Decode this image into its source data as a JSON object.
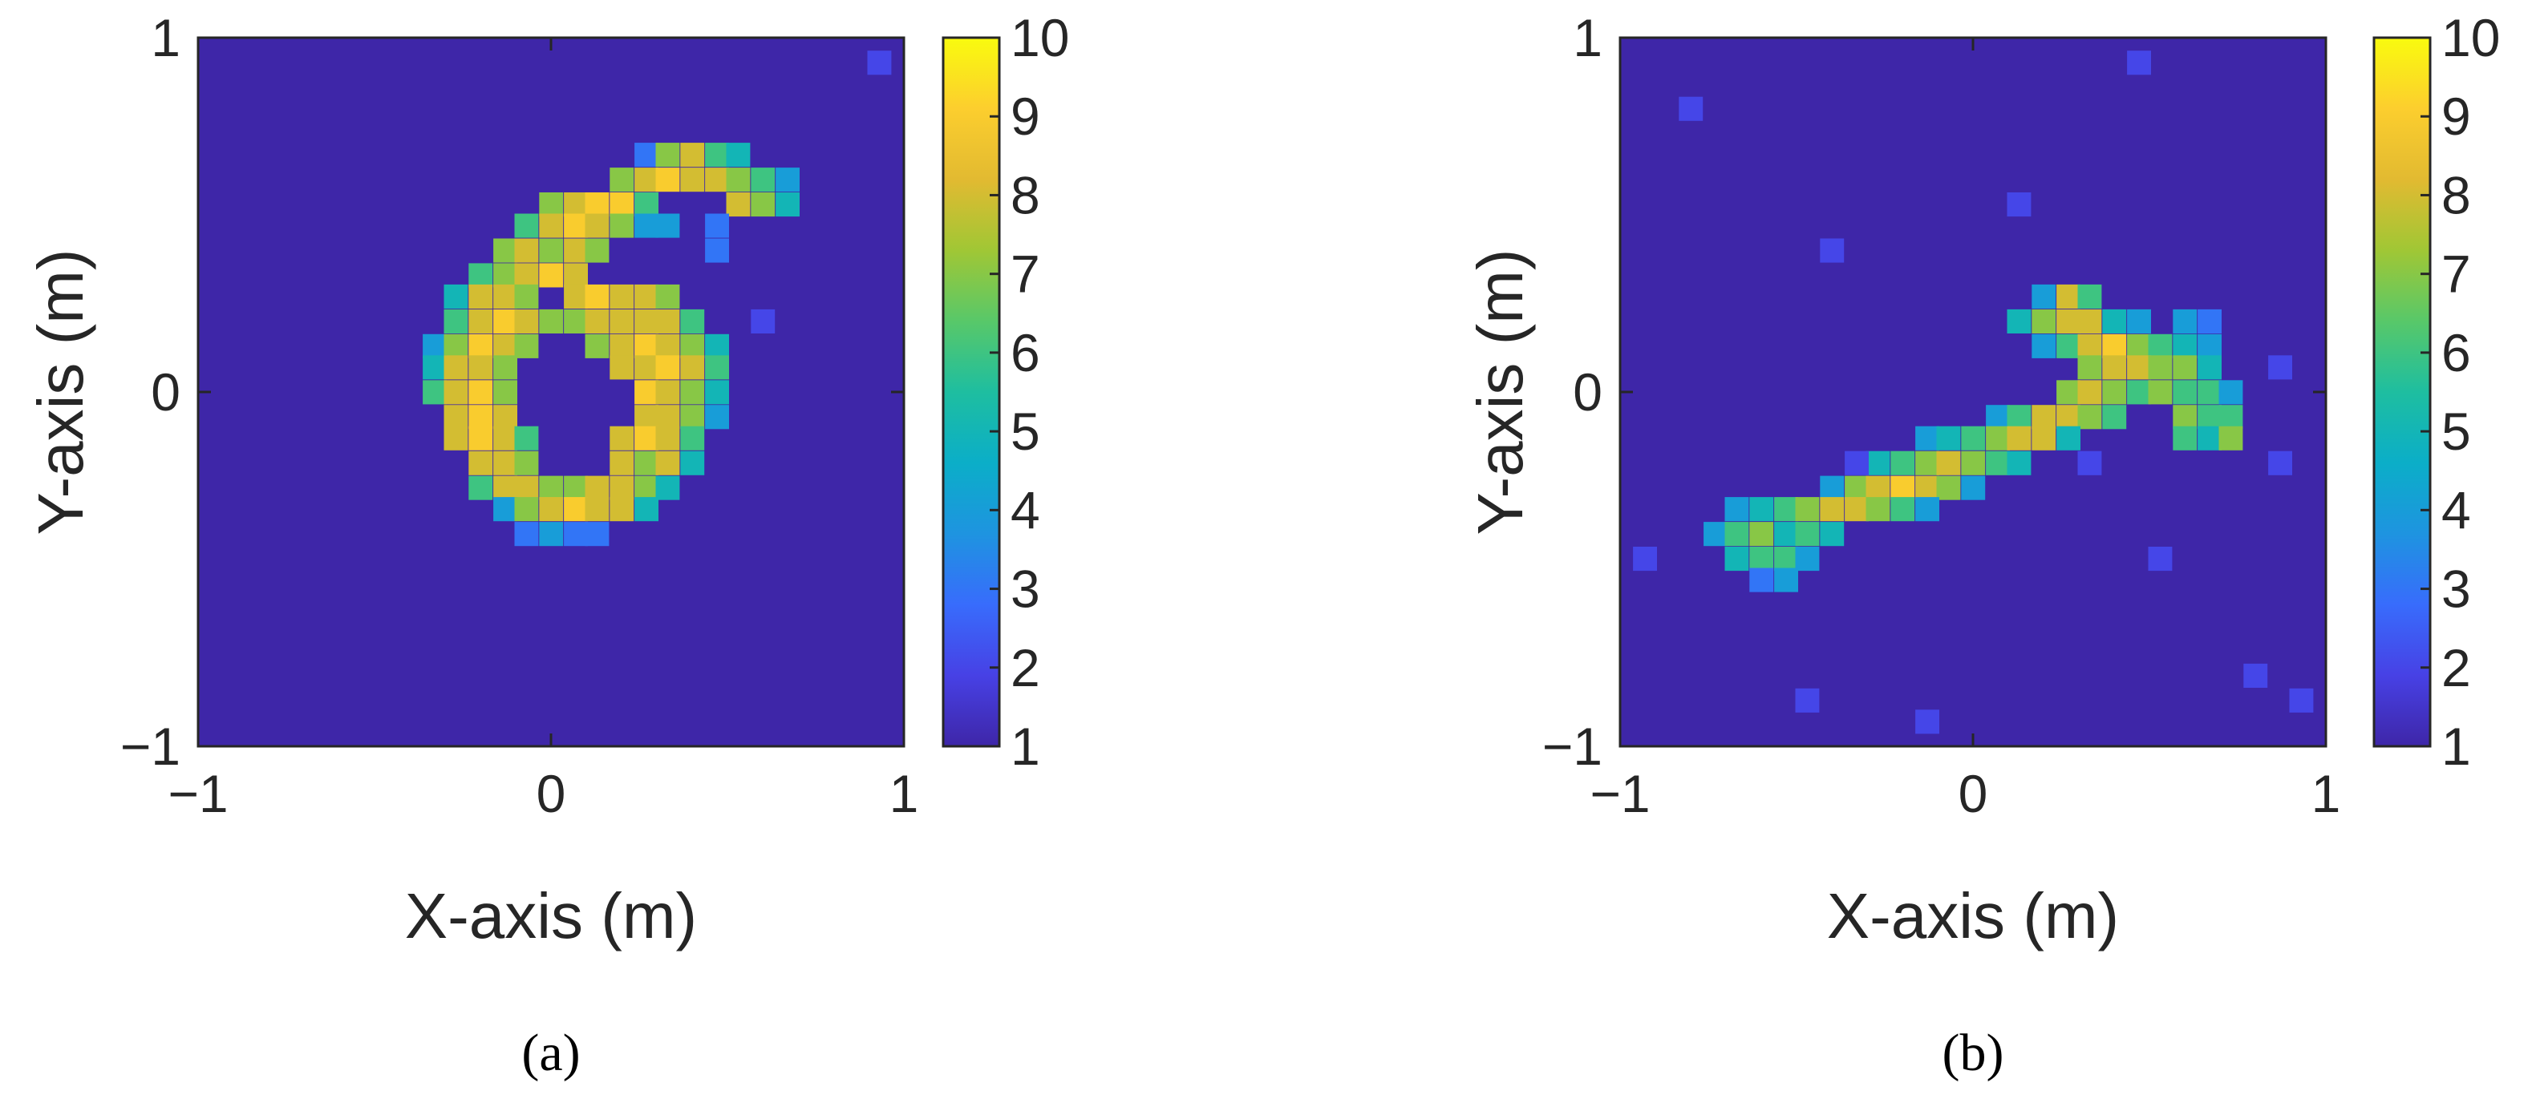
{
  "chart_data": [
    {
      "type": "heatmap",
      "panel_label": "(a)",
      "xlabel": "X-axis (m)",
      "ylabel": "Y-axis (m)",
      "xlim": [
        -1,
        1
      ],
      "ylim": [
        -1,
        1
      ],
      "xticks": [
        "−1",
        "0",
        "1"
      ],
      "yticks": [
        "−1",
        "0",
        "1"
      ],
      "grid_size": 30,
      "cell_size_m": 0.0667,
      "background_value": 1,
      "colorbar": {
        "min": 1,
        "max": 10,
        "ticks": [
          "1",
          "2",
          "3",
          "4",
          "5",
          "6",
          "7",
          "8",
          "9",
          "10"
        ],
        "colormap": "parula"
      },
      "cells": [
        [
          0.93,
          0.93,
          2
        ],
        [
          0.27,
          0.67,
          3
        ],
        [
          0.33,
          0.67,
          7
        ],
        [
          0.4,
          0.67,
          8
        ],
        [
          0.47,
          0.67,
          6
        ],
        [
          0.53,
          0.67,
          5
        ],
        [
          0.2,
          0.6,
          7
        ],
        [
          0.27,
          0.6,
          8
        ],
        [
          0.33,
          0.6,
          9
        ],
        [
          0.4,
          0.6,
          8
        ],
        [
          0.47,
          0.6,
          8
        ],
        [
          0.53,
          0.6,
          7
        ],
        [
          0.6,
          0.6,
          6
        ],
        [
          0.67,
          0.6,
          4
        ],
        [
          0.0,
          0.53,
          7
        ],
        [
          0.07,
          0.53,
          8
        ],
        [
          0.13,
          0.53,
          9
        ],
        [
          0.2,
          0.53,
          9
        ],
        [
          0.27,
          0.53,
          6
        ],
        [
          0.53,
          0.53,
          8
        ],
        [
          0.6,
          0.53,
          7
        ],
        [
          0.67,
          0.53,
          5
        ],
        [
          -0.07,
          0.47,
          6
        ],
        [
          0.0,
          0.47,
          8
        ],
        [
          0.07,
          0.47,
          9
        ],
        [
          0.13,
          0.47,
          8
        ],
        [
          0.2,
          0.47,
          7
        ],
        [
          0.27,
          0.47,
          4
        ],
        [
          0.33,
          0.47,
          4
        ],
        [
          0.47,
          0.47,
          3
        ],
        [
          -0.13,
          0.4,
          7
        ],
        [
          -0.07,
          0.4,
          8
        ],
        [
          0.0,
          0.4,
          7
        ],
        [
          0.07,
          0.4,
          8
        ],
        [
          0.13,
          0.4,
          7
        ],
        [
          0.47,
          0.4,
          3
        ],
        [
          -0.2,
          0.33,
          6
        ],
        [
          -0.13,
          0.33,
          7
        ],
        [
          -0.07,
          0.33,
          8
        ],
        [
          0.0,
          0.33,
          9
        ],
        [
          0.07,
          0.33,
          8
        ],
        [
          -0.27,
          0.27,
          5
        ],
        [
          -0.2,
          0.27,
          8
        ],
        [
          -0.13,
          0.27,
          8
        ],
        [
          -0.07,
          0.27,
          7
        ],
        [
          0.07,
          0.27,
          8
        ],
        [
          0.13,
          0.27,
          9
        ],
        [
          0.2,
          0.27,
          8
        ],
        [
          0.27,
          0.27,
          8
        ],
        [
          0.33,
          0.27,
          7
        ],
        [
          -0.27,
          0.2,
          6
        ],
        [
          -0.2,
          0.2,
          8
        ],
        [
          -0.13,
          0.2,
          9
        ],
        [
          -0.07,
          0.2,
          8
        ],
        [
          0.0,
          0.2,
          7
        ],
        [
          0.07,
          0.2,
          7
        ],
        [
          0.13,
          0.2,
          8
        ],
        [
          0.2,
          0.2,
          8
        ],
        [
          0.27,
          0.2,
          8
        ],
        [
          0.33,
          0.2,
          8
        ],
        [
          0.4,
          0.2,
          6
        ],
        [
          0.6,
          0.2,
          2
        ],
        [
          -0.33,
          0.13,
          4
        ],
        [
          -0.27,
          0.13,
          7
        ],
        [
          -0.2,
          0.13,
          9
        ],
        [
          -0.13,
          0.13,
          8
        ],
        [
          -0.07,
          0.13,
          7
        ],
        [
          0.13,
          0.13,
          7
        ],
        [
          0.2,
          0.13,
          8
        ],
        [
          0.27,
          0.13,
          9
        ],
        [
          0.33,
          0.13,
          8
        ],
        [
          0.4,
          0.13,
          7
        ],
        [
          0.47,
          0.13,
          5
        ],
        [
          -0.33,
          0.07,
          5
        ],
        [
          -0.27,
          0.07,
          8
        ],
        [
          -0.2,
          0.07,
          8
        ],
        [
          -0.13,
          0.07,
          7
        ],
        [
          0.2,
          0.07,
          8
        ],
        [
          0.27,
          0.07,
          8
        ],
        [
          0.33,
          0.07,
          9
        ],
        [
          0.4,
          0.07,
          8
        ],
        [
          0.47,
          0.07,
          6
        ],
        [
          -0.33,
          0.0,
          6
        ],
        [
          -0.27,
          0.0,
          8
        ],
        [
          -0.2,
          0.0,
          9
        ],
        [
          -0.13,
          0.0,
          7
        ],
        [
          0.27,
          0.0,
          9
        ],
        [
          0.33,
          0.0,
          8
        ],
        [
          0.4,
          0.0,
          7
        ],
        [
          0.47,
          0.0,
          5
        ],
        [
          -0.27,
          -0.07,
          8
        ],
        [
          -0.2,
          -0.07,
          9
        ],
        [
          -0.13,
          -0.07,
          8
        ],
        [
          0.27,
          -0.07,
          8
        ],
        [
          0.33,
          -0.07,
          8
        ],
        [
          0.4,
          -0.07,
          7
        ],
        [
          0.47,
          -0.07,
          4
        ],
        [
          -0.27,
          -0.13,
          8
        ],
        [
          -0.2,
          -0.13,
          9
        ],
        [
          -0.13,
          -0.13,
          8
        ],
        [
          -0.07,
          -0.13,
          6
        ],
        [
          0.2,
          -0.13,
          8
        ],
        [
          0.27,
          -0.13,
          9
        ],
        [
          0.33,
          -0.13,
          8
        ],
        [
          0.4,
          -0.13,
          6
        ],
        [
          -0.2,
          -0.2,
          8
        ],
        [
          -0.13,
          -0.2,
          8
        ],
        [
          -0.07,
          -0.2,
          7
        ],
        [
          0.2,
          -0.2,
          8
        ],
        [
          0.27,
          -0.2,
          7
        ],
        [
          0.33,
          -0.2,
          8
        ],
        [
          0.4,
          -0.2,
          5
        ],
        [
          -0.2,
          -0.27,
          6
        ],
        [
          -0.13,
          -0.27,
          8
        ],
        [
          -0.07,
          -0.27,
          8
        ],
        [
          0.0,
          -0.27,
          7
        ],
        [
          0.07,
          -0.27,
          7
        ],
        [
          0.13,
          -0.27,
          8
        ],
        [
          0.2,
          -0.27,
          8
        ],
        [
          0.27,
          -0.27,
          7
        ],
        [
          0.33,
          -0.27,
          5
        ],
        [
          -0.13,
          -0.33,
          4
        ],
        [
          -0.07,
          -0.33,
          7
        ],
        [
          0.0,
          -0.33,
          8
        ],
        [
          0.07,
          -0.33,
          9
        ],
        [
          0.13,
          -0.33,
          8
        ],
        [
          0.2,
          -0.33,
          8
        ],
        [
          0.27,
          -0.33,
          5
        ],
        [
          -0.07,
          -0.4,
          3
        ],
        [
          0.0,
          -0.4,
          4
        ],
        [
          0.07,
          -0.4,
          3
        ],
        [
          0.13,
          -0.4,
          3
        ]
      ]
    },
    {
      "type": "heatmap",
      "panel_label": "(b)",
      "xlabel": "X-axis (m)",
      "ylabel": "Y-axis (m)",
      "xlim": [
        -1,
        1
      ],
      "ylim": [
        -1,
        1
      ],
      "xticks": [
        "−1",
        "0",
        "1"
      ],
      "yticks": [
        "−1",
        "0",
        "1"
      ],
      "grid_size": 30,
      "cell_size_m": 0.0667,
      "background_value": 1,
      "colorbar": {
        "min": 1,
        "max": 10,
        "ticks": [
          "1",
          "2",
          "3",
          "4",
          "5",
          "6",
          "7",
          "8",
          "9",
          "10"
        ],
        "colormap": "parula"
      },
      "cells": [
        [
          0.2,
          0.27,
          4
        ],
        [
          0.27,
          0.27,
          8
        ],
        [
          0.33,
          0.27,
          6
        ],
        [
          0.13,
          0.2,
          5
        ],
        [
          0.2,
          0.2,
          7
        ],
        [
          0.27,
          0.2,
          8
        ],
        [
          0.33,
          0.2,
          8
        ],
        [
          0.4,
          0.2,
          5
        ],
        [
          0.47,
          0.2,
          4
        ],
        [
          0.6,
          0.2,
          4
        ],
        [
          0.67,
          0.2,
          3
        ],
        [
          0.2,
          0.13,
          4
        ],
        [
          0.27,
          0.13,
          6
        ],
        [
          0.33,
          0.13,
          8
        ],
        [
          0.4,
          0.13,
          9
        ],
        [
          0.47,
          0.13,
          7
        ],
        [
          0.53,
          0.13,
          6
        ],
        [
          0.6,
          0.13,
          5
        ],
        [
          0.67,
          0.13,
          4
        ],
        [
          0.33,
          0.07,
          7
        ],
        [
          0.4,
          0.07,
          8
        ],
        [
          0.47,
          0.07,
          8
        ],
        [
          0.53,
          0.07,
          7
        ],
        [
          0.6,
          0.07,
          7
        ],
        [
          0.67,
          0.07,
          5
        ],
        [
          0.27,
          0.0,
          7
        ],
        [
          0.33,
          0.0,
          8
        ],
        [
          0.4,
          0.0,
          7
        ],
        [
          0.47,
          0.0,
          6
        ],
        [
          0.53,
          0.0,
          7
        ],
        [
          0.6,
          0.0,
          6
        ],
        [
          0.67,
          0.0,
          6
        ],
        [
          0.73,
          0.0,
          4
        ],
        [
          0.07,
          -0.07,
          4
        ],
        [
          0.13,
          -0.07,
          6
        ],
        [
          0.2,
          -0.07,
          8
        ],
        [
          0.27,
          -0.07,
          8
        ],
        [
          0.33,
          -0.07,
          7
        ],
        [
          0.4,
          -0.07,
          6
        ],
        [
          0.6,
          -0.07,
          7
        ],
        [
          0.67,
          -0.07,
          6
        ],
        [
          0.73,
          -0.07,
          6
        ],
        [
          -0.13,
          -0.13,
          4
        ],
        [
          -0.07,
          -0.13,
          5
        ],
        [
          0.0,
          -0.13,
          6
        ],
        [
          0.07,
          -0.13,
          7
        ],
        [
          0.13,
          -0.13,
          8
        ],
        [
          0.2,
          -0.13,
          8
        ],
        [
          0.27,
          -0.13,
          5
        ],
        [
          0.6,
          -0.13,
          6
        ],
        [
          0.67,
          -0.13,
          5
        ],
        [
          0.73,
          -0.13,
          7
        ],
        [
          -0.27,
          -0.2,
          5
        ],
        [
          -0.2,
          -0.2,
          6
        ],
        [
          -0.13,
          -0.2,
          7
        ],
        [
          -0.07,
          -0.2,
          8
        ],
        [
          0.0,
          -0.2,
          7
        ],
        [
          0.07,
          -0.2,
          6
        ],
        [
          0.13,
          -0.2,
          5
        ],
        [
          -0.4,
          -0.27,
          4
        ],
        [
          -0.33,
          -0.27,
          7
        ],
        [
          -0.27,
          -0.27,
          8
        ],
        [
          -0.2,
          -0.27,
          9
        ],
        [
          -0.13,
          -0.27,
          8
        ],
        [
          -0.07,
          -0.27,
          7
        ],
        [
          0.0,
          -0.27,
          4
        ],
        [
          -0.67,
          -0.33,
          4
        ],
        [
          -0.6,
          -0.33,
          5
        ],
        [
          -0.53,
          -0.33,
          6
        ],
        [
          -0.47,
          -0.33,
          7
        ],
        [
          -0.4,
          -0.33,
          8
        ],
        [
          -0.33,
          -0.33,
          8
        ],
        [
          -0.27,
          -0.33,
          7
        ],
        [
          -0.2,
          -0.33,
          6
        ],
        [
          -0.13,
          -0.33,
          4
        ],
        [
          -0.73,
          -0.4,
          4
        ],
        [
          -0.67,
          -0.4,
          6
        ],
        [
          -0.6,
          -0.4,
          7
        ],
        [
          -0.53,
          -0.4,
          5
        ],
        [
          -0.47,
          -0.4,
          6
        ],
        [
          -0.4,
          -0.4,
          5
        ],
        [
          -0.67,
          -0.47,
          5
        ],
        [
          -0.6,
          -0.47,
          6
        ],
        [
          -0.53,
          -0.47,
          6
        ],
        [
          -0.47,
          -0.47,
          4
        ],
        [
          -0.6,
          -0.53,
          3
        ],
        [
          -0.53,
          -0.53,
          4
        ],
        [
          -0.33,
          -0.2,
          2
        ],
        [
          0.33,
          -0.2,
          2
        ],
        [
          0.87,
          -0.2,
          2
        ],
        [
          -0.93,
          -0.47,
          2
        ],
        [
          0.8,
          -0.8,
          2
        ],
        [
          -0.13,
          -0.93,
          2
        ],
        [
          0.47,
          0.93,
          2
        ],
        [
          -0.4,
          0.4,
          2
        ],
        [
          0.87,
          0.07,
          2
        ],
        [
          -0.8,
          0.8,
          2
        ],
        [
          0.13,
          0.53,
          2
        ],
        [
          -0.47,
          -0.87,
          2
        ],
        [
          0.53,
          -0.47,
          2
        ],
        [
          0.93,
          -0.87,
          2
        ]
      ]
    }
  ]
}
